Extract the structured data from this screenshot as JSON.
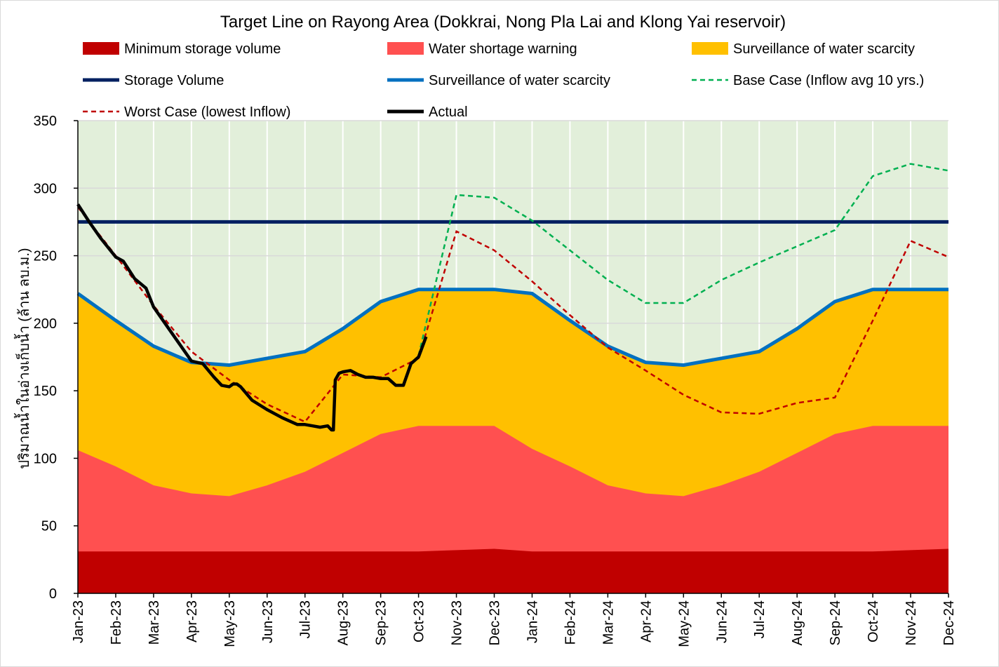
{
  "chart_data": {
    "type": "area",
    "title": "Target Line on Rayong Area (Dokkrai, Nong Pla Lai and Klong Yai reservoir)",
    "ylabel": "ปริมาณน้ำในอ่างเก็บน้ำ (ล้าน ลบ.ม.)",
    "xlabel": "",
    "ylim": [
      0,
      350
    ],
    "yticks": [
      0,
      50,
      100,
      150,
      200,
      250,
      300,
      350
    ],
    "grid": true,
    "legend_position": "top",
    "categories": [
      "Jan-23",
      "Feb-23",
      "Mar-23",
      "Apr-23",
      "May-23",
      "Jun-23",
      "Jul-23",
      "Aug-23",
      "Sep-23",
      "Oct-23",
      "Nov-23",
      "Dec-23",
      "Jan-24",
      "Feb-24",
      "Mar-24",
      "Apr-24",
      "May-24",
      "Jun-24",
      "Jul-24",
      "Aug-24",
      "Sep-24",
      "Oct-24",
      "Nov-24",
      "Dec-24"
    ],
    "series": [
      {
        "name": "Minimum storage volume",
        "kind": "area",
        "color": "#c00000",
        "values": [
          31,
          31,
          31,
          31,
          31,
          31,
          31,
          31,
          31,
          31,
          32,
          33,
          31,
          31,
          31,
          31,
          31,
          31,
          31,
          31,
          31,
          31,
          32,
          33
        ]
      },
      {
        "name": "Water shortage warning",
        "kind": "area",
        "color": "#ff5050",
        "values": [
          106,
          94,
          80,
          74,
          72,
          80,
          90,
          104,
          118,
          124,
          124,
          124,
          107,
          94,
          80,
          74,
          72,
          80,
          90,
          104,
          118,
          124,
          124,
          124
        ]
      },
      {
        "name": "Surveillance of water scarcity",
        "kind": "area",
        "color": "#ffc000",
        "values": [
          222,
          202,
          183,
          171,
          169,
          174,
          179,
          196,
          216,
          225,
          225,
          225,
          222,
          202,
          183,
          171,
          169,
          174,
          179,
          196,
          216,
          225,
          225,
          225
        ]
      },
      {
        "name": "Storage Volume",
        "kind": "line",
        "color": "#002060",
        "values": [
          275,
          275,
          275,
          275,
          275,
          275,
          275,
          275,
          275,
          275,
          275,
          275,
          275,
          275,
          275,
          275,
          275,
          275,
          275,
          275,
          275,
          275,
          275,
          275
        ]
      },
      {
        "name": "Surveillance of water scarcity",
        "kind": "line",
        "color": "#0070c0",
        "values": [
          222,
          202,
          183,
          171,
          169,
          174,
          179,
          196,
          216,
          225,
          225,
          225,
          222,
          202,
          183,
          171,
          169,
          174,
          179,
          196,
          216,
          225,
          225,
          225
        ]
      },
      {
        "name": "Base Case (Inflow avg 10 yrs.)",
        "kind": "dashed",
        "color": "#00b050",
        "x": [
          "Oct-23",
          "Nov-23",
          "Dec-23",
          "Jan-24",
          "Feb-24",
          "Mar-24",
          "Apr-24",
          "May-24",
          "Jun-24",
          "Jul-24",
          "Aug-24",
          "Sep-24",
          "Oct-24",
          "Nov-24",
          "Dec-24"
        ],
        "values": [
          176,
          295,
          293,
          276,
          254,
          232,
          215,
          215,
          232,
          245,
          257,
          269,
          309,
          318,
          313
        ]
      },
      {
        "name": "Worst Case (lowest Inflow)",
        "kind": "dashed",
        "color": "#c00000",
        "values": [
          286,
          250,
          213,
          179,
          158,
          140,
          127,
          162,
          160,
          174,
          268,
          254,
          231,
          206,
          182,
          165,
          147,
          134,
          133,
          141,
          145,
          202,
          261,
          249
        ]
      },
      {
        "name": "Actual",
        "kind": "line",
        "color": "#000000",
        "x": [
          0,
          0.3,
          0.6,
          1.0,
          1.2,
          1.5,
          1.8,
          2.0,
          2.4,
          2.8,
          3.0,
          3.3,
          3.6,
          3.8,
          4.0,
          4.1,
          4.2,
          4.3,
          4.6,
          5.0,
          5.4,
          5.8,
          6.0,
          6.2,
          6.4,
          6.6,
          6.7,
          6.75,
          6.8,
          6.9,
          7.0,
          7.2,
          7.4,
          7.6,
          7.8,
          8.0,
          8.2,
          8.4,
          8.6,
          8.8,
          9.0,
          9.2
        ],
        "values": [
          288,
          275,
          263,
          249,
          246,
          233,
          226,
          212,
          196,
          180,
          172,
          170,
          160,
          154,
          153,
          155,
          155,
          153,
          143,
          136,
          130,
          125,
          125,
          124,
          123,
          124,
          121,
          121,
          158,
          163,
          164,
          165,
          162,
          160,
          160,
          159,
          159,
          154,
          154,
          170,
          175,
          190
        ]
      }
    ]
  }
}
